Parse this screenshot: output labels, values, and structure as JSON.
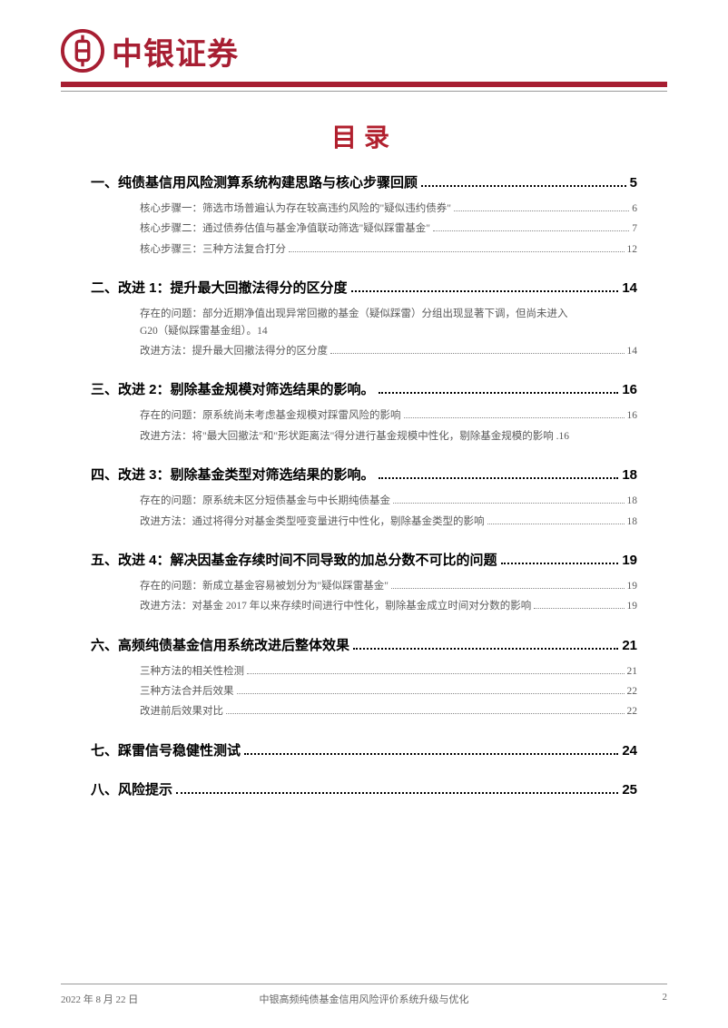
{
  "colors": {
    "brand_red": "#a71e32",
    "accent_red": "#b1202e",
    "text_black": "#000000",
    "text_gray": "#5a5a5a",
    "footer_gray": "#666666",
    "line_gray": "#999999",
    "bg": "#ffffff"
  },
  "typography": {
    "h1_fontsize": 15,
    "h2_fontsize": 11.5,
    "title_fontsize": 28,
    "logo_fontsize": 34
  },
  "header": {
    "logo_text": "中银证券"
  },
  "title": "目录",
  "toc": [
    {
      "label": "一、纯债基信用风险测算系统构建思路与核心步骤回顾",
      "page": "5",
      "subs": [
        {
          "label": "核心步骤一：筛选市场普遍认为存在较高违约风险的\"疑似违约债券\"",
          "page": "6"
        },
        {
          "label": "核心步骤二：通过债券估值与基金净值联动筛选\"疑似踩雷基金\"",
          "page": "7"
        },
        {
          "label": "核心步骤三：三种方法复合打分",
          "page": "12"
        }
      ]
    },
    {
      "label": "二、改进 1：提升最大回撤法得分的区分度",
      "page": "14",
      "subs": [
        {
          "wrap": true,
          "line1": "存在的问题：部分近期净值出现异常回撤的基金（疑似踩雷）分组出现显著下调，但尚未进入",
          "line2": "G20（疑似踩雷基金组）。",
          "page": "14"
        },
        {
          "label": "改进方法：提升最大回撤法得分的区分度",
          "page": "14"
        }
      ]
    },
    {
      "label": "三、改进 2：剔除基金规模对筛选结果的影响。",
      "page": "16",
      "subs": [
        {
          "label": "存在的问题：原系统尚未考虑基金规模对踩雷风险的影响",
          "page": "16"
        },
        {
          "label": "改进方法：将\"最大回撤法\"和\"形状距离法\"得分进行基金规模中性化，剔除基金规模的影响 .",
          "page": "16",
          "nodots": true
        }
      ]
    },
    {
      "label": "四、改进 3：剔除基金类型对筛选结果的影响。",
      "page": "18",
      "subs": [
        {
          "label": "存在的问题：原系统未区分短债基金与中长期纯债基金",
          "page": "18"
        },
        {
          "label": "改进方法：通过将得分对基金类型哑变量进行中性化，剔除基金类型的影响",
          "page": "18"
        }
      ]
    },
    {
      "label": "五、改进 4：解决因基金存续时间不同导致的加总分数不可比的问题",
      "page": "19",
      "subs": [
        {
          "label": "存在的问题：新成立基金容易被划分为\"疑似踩雷基金\"",
          "page": "19"
        },
        {
          "label": "改进方法：对基金 2017 年以来存续时间进行中性化，剔除基金成立时间对分数的影响",
          "page": "19"
        }
      ]
    },
    {
      "label": "六、高频纯债基金信用系统改进后整体效果",
      "page": "21",
      "subs": [
        {
          "label": "三种方法的相关性检测",
          "page": "21"
        },
        {
          "label": "三种方法合并后效果",
          "page": "22"
        },
        {
          "label": "改进前后效果对比",
          "page": "22"
        }
      ]
    },
    {
      "label": "七、踩雷信号稳健性测试",
      "page": "24",
      "subs": []
    },
    {
      "label": "八、风险提示",
      "page": "25",
      "subs": []
    }
  ],
  "footer": {
    "date": "2022 年 8 月 22 日",
    "doc": "中银高频纯债基金信用风险评价系统升级与优化",
    "page": "2"
  }
}
